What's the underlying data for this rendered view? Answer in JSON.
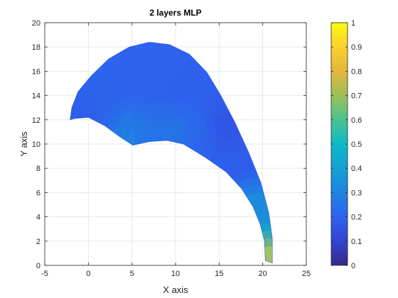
{
  "chart_data": {
    "type": "heatmap",
    "title": "2 layers MLP",
    "xlabel": "X axis",
    "ylabel": "Y axis",
    "xlim": [
      -5,
      25
    ],
    "ylim": [
      0,
      20
    ],
    "xticks": [
      -5,
      0,
      5,
      10,
      15,
      20,
      25
    ],
    "yticks": [
      0,
      2,
      4,
      6,
      8,
      10,
      12,
      14,
      16,
      18,
      20
    ],
    "grid": true,
    "colormap": "parula",
    "colorbar": {
      "placement": "right",
      "clim": [
        0,
        1
      ],
      "ticks": [
        "0",
        "0.1",
        "0.2",
        "0.3",
        "0.4",
        "0.5",
        "0.6",
        "0.7",
        "0.8",
        "0.9",
        "1"
      ]
    },
    "region_outline": [
      [
        -2.1,
        12.0
      ],
      [
        -1.9,
        13.0
      ],
      [
        -1.2,
        14.3
      ],
      [
        0.3,
        15.6
      ],
      [
        2.3,
        17.0
      ],
      [
        4.7,
        18.0
      ],
      [
        7.0,
        18.4
      ],
      [
        9.3,
        18.2
      ],
      [
        11.6,
        17.4
      ],
      [
        13.6,
        15.9
      ],
      [
        15.2,
        14.0
      ],
      [
        16.8,
        11.8
      ],
      [
        18.4,
        9.3
      ],
      [
        19.8,
        6.8
      ],
      [
        20.7,
        4.3
      ],
      [
        21.1,
        2.2
      ],
      [
        21.1,
        0.2
      ],
      [
        20.3,
        0.4
      ],
      [
        20.2,
        2.0
      ],
      [
        19.7,
        3.4
      ],
      [
        18.9,
        4.8
      ],
      [
        17.6,
        6.3
      ],
      [
        15.8,
        7.7
      ],
      [
        13.4,
        8.9
      ],
      [
        10.9,
        10.0
      ],
      [
        9.0,
        10.3
      ],
      [
        7.0,
        10.2
      ],
      [
        5.1,
        9.9
      ],
      [
        3.6,
        10.6
      ],
      [
        1.9,
        11.5
      ],
      [
        0.0,
        12.2
      ],
      [
        -1.6,
        12.1
      ]
    ],
    "samples": [
      {
        "x": 7.0,
        "y": 15.0,
        "value": 0.17
      },
      {
        "x": 10.0,
        "y": 15.0,
        "value": 0.18
      },
      {
        "x": 5.0,
        "y": 14.0,
        "value": 0.17
      },
      {
        "x": 13.0,
        "y": 12.0,
        "value": 0.19
      },
      {
        "x": 4.0,
        "y": 12.0,
        "value": 0.2
      },
      {
        "x": 0.0,
        "y": 13.5,
        "value": 0.26
      },
      {
        "x": -1.5,
        "y": 12.8,
        "value": 0.18
      },
      {
        "x": 7.0,
        "y": 17.5,
        "value": 0.2
      },
      {
        "x": 15.0,
        "y": 9.0,
        "value": 0.2
      },
      {
        "x": 17.5,
        "y": 7.0,
        "value": 0.17
      },
      {
        "x": 16.0,
        "y": 11.5,
        "value": 0.14
      },
      {
        "x": 6.0,
        "y": 10.3,
        "value": 0.4
      },
      {
        "x": 9.5,
        "y": 10.8,
        "value": 0.27
      },
      {
        "x": 19.3,
        "y": 4.2,
        "value": 0.5
      },
      {
        "x": 20.0,
        "y": 3.0,
        "value": 0.58
      },
      {
        "x": 20.6,
        "y": 1.8,
        "value": 0.42
      },
      {
        "x": 20.8,
        "y": 0.5,
        "value": 0.95
      }
    ]
  }
}
